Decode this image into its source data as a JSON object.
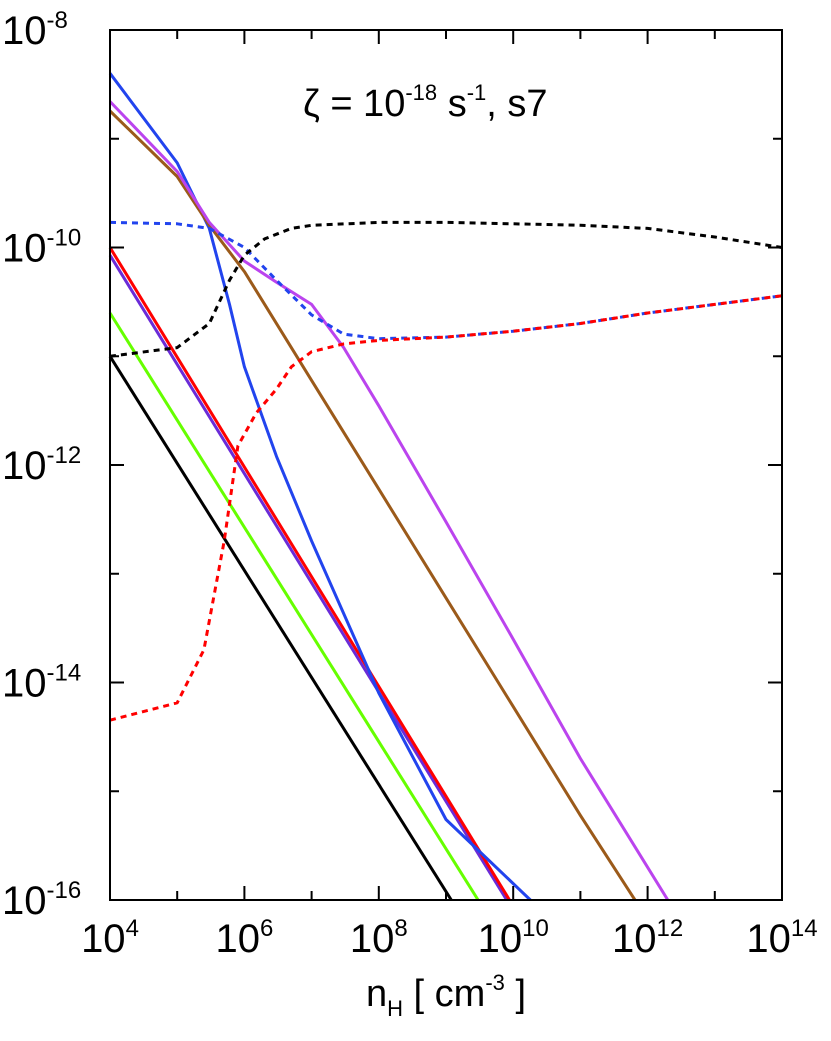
{
  "chart_data": {
    "type": "line",
    "xscale": "log",
    "yscale": "log",
    "xlim": [
      10000.0,
      100000000000000.0
    ],
    "ylim": [
      1e-16,
      1e-08
    ],
    "grid": false,
    "legend": "none",
    "annotation": {
      "prefix": "ζ = 10",
      "exponent": "-18",
      "mid": " s",
      "mid_exponent": "-1",
      "suffix": ", s7"
    },
    "xlabel": {
      "base": "n",
      "subscript": "H",
      "unit_open": " [ cm",
      "unit_exponent": "-3",
      "unit_close": " ]"
    },
    "x_ticks": [
      {
        "base": "10",
        "exp": "4",
        "value": 10000.0
      },
      {
        "base": "10",
        "exp": "6",
        "value": 1000000.0
      },
      {
        "base": "10",
        "exp": "8",
        "value": 100000000.0
      },
      {
        "base": "10",
        "exp": "10",
        "value": 10000000000.0
      },
      {
        "base": "10",
        "exp": "12",
        "value": 1000000000000.0
      },
      {
        "base": "10",
        "exp": "14",
        "value": 100000000000000.0
      }
    ],
    "y_ticks": [
      {
        "base": "10",
        "exp": "-8",
        "value": 1e-08
      },
      {
        "base": "10",
        "exp": "-10",
        "value": 1e-10
      },
      {
        "base": "10",
        "exp": "-12",
        "value": 1e-12
      },
      {
        "base": "10",
        "exp": "-14",
        "value": 1e-14
      },
      {
        "base": "10",
        "exp": "-16",
        "value": 1e-16
      }
    ],
    "series": [
      {
        "color": "#000000",
        "style": "solid",
        "points": [
          [
            10000.0,
            1e-11
          ],
          [
            1200000000.0,
            1e-16
          ]
        ]
      },
      {
        "color": "#66ff00",
        "style": "solid",
        "points": [
          [
            10000.0,
            2.5e-11
          ],
          [
            3000000000.0,
            1e-16
          ]
        ]
      },
      {
        "color": "#6a2bd8",
        "style": "solid",
        "points": [
          [
            10000.0,
            8.5e-11
          ],
          [
            8000000000.0,
            1e-16
          ]
        ]
      },
      {
        "color": "#ff0000",
        "style": "solid",
        "points": [
          [
            10000.0,
            1e-10
          ],
          [
            8800000000.0,
            1e-16
          ]
        ]
      },
      {
        "color": "#2244ee",
        "style": "solid",
        "points": [
          [
            10000.0,
            4e-09
          ],
          [
            100000.0,
            6e-10
          ],
          [
            300000.0,
            1.5e-10
          ],
          [
            600000.0,
            3e-11
          ],
          [
            1000000.0,
            8e-12
          ],
          [
            3000000.0,
            1.2e-12
          ],
          [
            10000000.0,
            2e-13
          ],
          [
            100000000.0,
            8e-15
          ],
          [
            1000000000.0,
            5.5e-16
          ],
          [
            18000000000.0,
            1e-16
          ]
        ]
      },
      {
        "color": "#9b5a1a",
        "style": "solid",
        "points": [
          [
            10000.0,
            1.8e-09
          ],
          [
            100000.0,
            4.5e-10
          ],
          [
            300000.0,
            1.6e-10
          ],
          [
            1000000.0,
            6e-11
          ],
          [
            10000000.0,
            6e-12
          ],
          [
            100000000.0,
            6e-13
          ],
          [
            1000000000.0,
            6e-14
          ],
          [
            10000000000.0,
            6e-15
          ],
          [
            100000000000.0,
            6e-16
          ],
          [
            650000000000.0,
            1e-16
          ]
        ]
      },
      {
        "color": "#bb44ee",
        "style": "solid",
        "points": [
          [
            10000.0,
            2.2e-09
          ],
          [
            100000.0,
            5e-10
          ],
          [
            300000.0,
            1.7e-10
          ],
          [
            1000000.0,
            7.5e-11
          ],
          [
            3000000.0,
            4.8e-11
          ],
          [
            10000000.0,
            3e-11
          ],
          [
            30000000.0,
            1.2e-11
          ],
          [
            100000000.0,
            3.5e-12
          ],
          [
            1000000000.0,
            3e-13
          ],
          [
            10000000000.0,
            2.5e-14
          ],
          [
            100000000000.0,
            2e-15
          ],
          [
            2000000000000.0,
            1e-16
          ]
        ]
      },
      {
        "color": "#2244ee",
        "style": "dotted",
        "points": [
          [
            10000.0,
            1.7e-10
          ],
          [
            100000.0,
            1.65e-10
          ],
          [
            300000.0,
            1.5e-10
          ],
          [
            1000000.0,
            1e-10
          ],
          [
            3000000.0,
            5e-11
          ],
          [
            10000000.0,
            2.4e-11
          ],
          [
            30000000.0,
            1.6e-11
          ],
          [
            100000000.0,
            1.45e-11
          ],
          [
            1000000000.0,
            1.5e-11
          ],
          [
            10000000000.0,
            1.7e-11
          ],
          [
            100000000000.0,
            2e-11
          ],
          [
            1000000000000.0,
            2.5e-11
          ],
          [
            10000000000000.0,
            3e-11
          ],
          [
            100000000000000.0,
            3.6e-11
          ]
        ]
      },
      {
        "color": "#ff0000",
        "style": "dotted",
        "points": [
          [
            10000.0,
            4.5e-15
          ],
          [
            100000.0,
            6.5e-15
          ],
          [
            250000.0,
            2e-14
          ],
          [
            500000.0,
            2e-13
          ],
          [
            800000.0,
            1.5e-12
          ],
          [
            1500000.0,
            3e-12
          ],
          [
            3000000.0,
            5e-12
          ],
          [
            5000000.0,
            8e-12
          ],
          [
            10000000.0,
            1.1e-11
          ],
          [
            30000000.0,
            1.3e-11
          ],
          [
            100000000.0,
            1.4e-11
          ],
          [
            1000000000.0,
            1.5e-11
          ],
          [
            10000000000.0,
            1.7e-11
          ],
          [
            100000000000.0,
            2e-11
          ],
          [
            1000000000000.0,
            2.5e-11
          ],
          [
            10000000000000.0,
            3e-11
          ],
          [
            100000000000000.0,
            3.6e-11
          ]
        ]
      },
      {
        "color": "#000000",
        "style": "dotted",
        "points": [
          [
            10000.0,
            1e-11
          ],
          [
            100000.0,
            1.2e-11
          ],
          [
            300000.0,
            2e-11
          ],
          [
            600000.0,
            5e-11
          ],
          [
            1000000.0,
            8.5e-11
          ],
          [
            2000000.0,
            1.2e-10
          ],
          [
            5000000.0,
            1.5e-10
          ],
          [
            10000000.0,
            1.6e-10
          ],
          [
            100000000.0,
            1.7e-10
          ],
          [
            1000000000.0,
            1.7e-10
          ],
          [
            10000000000.0,
            1.65e-10
          ],
          [
            100000000000.0,
            1.6e-10
          ],
          [
            1000000000000.0,
            1.5e-10
          ],
          [
            10000000000000.0,
            1.25e-10
          ],
          [
            100000000000000.0,
            1e-10
          ]
        ]
      }
    ]
  }
}
